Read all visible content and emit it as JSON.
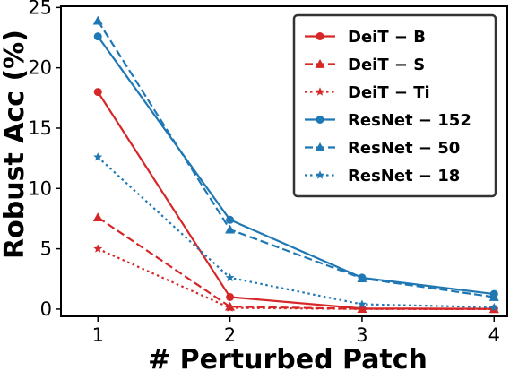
{
  "chart_data": {
    "type": "line",
    "title": "",
    "xlabel": "# Perturbed Patch",
    "ylabel": "Robust Acc (%)",
    "x": [
      1,
      2,
      3,
      4
    ],
    "xticks": [
      "1",
      "2",
      "3",
      "4"
    ],
    "yticks": [
      "0",
      "5",
      "10",
      "15",
      "20",
      "25"
    ],
    "xlim": [
      0.72,
      4.1
    ],
    "ylim": [
      -0.6,
      25.1
    ],
    "grid": false,
    "legend_position": "top-right",
    "series": [
      {
        "name": "DeiT − B",
        "values": [
          18.0,
          1.0,
          0.05,
          0.02
        ],
        "color": "#d62728",
        "dash": "solid",
        "marker": "circle"
      },
      {
        "name": "DeiT − S",
        "values": [
          7.6,
          0.2,
          0.02,
          0.01
        ],
        "color": "#d62728",
        "dash": "dashed",
        "marker": "triangle"
      },
      {
        "name": "DeiT − Ti",
        "values": [
          5.0,
          0.1,
          0.01,
          0.0
        ],
        "color": "#d62728",
        "dash": "dotted",
        "marker": "star"
      },
      {
        "name": "ResNet − 152",
        "values": [
          22.6,
          7.4,
          2.6,
          1.25
        ],
        "color": "#1f77b4",
        "dash": "solid",
        "marker": "circle"
      },
      {
        "name": "ResNet − 50",
        "values": [
          23.9,
          6.6,
          2.55,
          1.0
        ],
        "color": "#1f77b4",
        "dash": "dashed",
        "marker": "triangle"
      },
      {
        "name": "ResNet − 18",
        "values": [
          12.6,
          2.6,
          0.4,
          0.15
        ],
        "color": "#1f77b4",
        "dash": "dotted",
        "marker": "star"
      }
    ]
  }
}
